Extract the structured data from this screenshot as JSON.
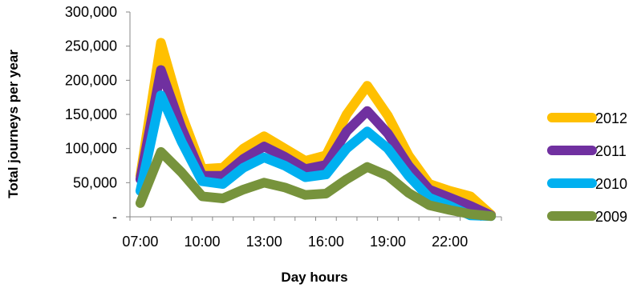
{
  "chart_data": {
    "type": "line",
    "title": "",
    "xlabel": "Day hours",
    "ylabel": "Total journeys per year",
    "x": [
      "07:00",
      "08:00",
      "09:00",
      "10:00",
      "11:00",
      "12:00",
      "13:00",
      "14:00",
      "15:00",
      "16:00",
      "17:00",
      "18:00",
      "19:00",
      "20:00",
      "21:00",
      "22:00",
      "23:00",
      "00:00"
    ],
    "x_tick_labels": [
      "07:00",
      "10:00",
      "13:00",
      "16:00",
      "19:00",
      "22:00"
    ],
    "y_ticks": [
      {
        "value": 0,
        "label": "-"
      },
      {
        "value": 50000,
        "label": "50,000"
      },
      {
        "value": 100000,
        "label": "100,000"
      },
      {
        "value": 150000,
        "label": "150,000"
      },
      {
        "value": 200000,
        "label": "200,000"
      },
      {
        "value": 250000,
        "label": "250,000"
      },
      {
        "value": 300000,
        "label": "300,000"
      }
    ],
    "ylim": [
      0,
      300000
    ],
    "grid": false,
    "legend_position": "right",
    "series": [
      {
        "name": "2012",
        "color": "#FFC000",
        "values": [
          60000,
          255000,
          150000,
          70000,
          72000,
          100000,
          118000,
          100000,
          82000,
          90000,
          150000,
          192000,
          148000,
          90000,
          48000,
          38000,
          30000,
          3000
        ]
      },
      {
        "name": "2011",
        "color": "#7030A0",
        "values": [
          55000,
          215000,
          130000,
          60000,
          60000,
          85000,
          103000,
          88000,
          70000,
          76000,
          125000,
          155000,
          122000,
          75000,
          40000,
          28000,
          16000,
          2000
        ]
      },
      {
        "name": "2010",
        "color": "#00B0F0",
        "values": [
          38000,
          178000,
          110000,
          52000,
          48000,
          72000,
          87000,
          75000,
          58000,
          62000,
          100000,
          125000,
          100000,
          60000,
          28000,
          16000,
          2000,
          1000
        ]
      },
      {
        "name": "2009",
        "color": "#77933C",
        "values": [
          20000,
          95000,
          65000,
          30000,
          27000,
          40000,
          50000,
          43000,
          32000,
          34000,
          55000,
          73000,
          60000,
          35000,
          17000,
          10000,
          4000,
          1000
        ]
      }
    ]
  }
}
